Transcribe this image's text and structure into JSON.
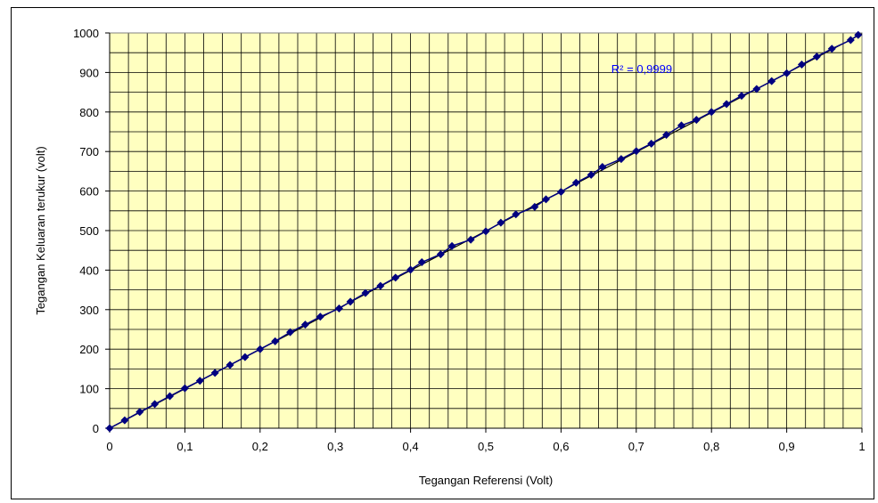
{
  "chart_data": {
    "type": "scatter",
    "title": "",
    "xlabel": "Tegangan Referensi (Volt)",
    "ylabel": "Tegangan Keluaran terukur (volt)",
    "xlim": [
      0,
      1
    ],
    "ylim": [
      0,
      1000
    ],
    "x_ticks": [
      "0",
      "0,1",
      "0,2",
      "0,3",
      "0,4",
      "0,5",
      "0,6",
      "0,7",
      "0,8",
      "0,9",
      "1"
    ],
    "y_ticks": [
      "0",
      "100",
      "200",
      "300",
      "400",
      "500",
      "600",
      "700",
      "800",
      "900",
      "1000"
    ],
    "grid": true,
    "plot_background": "#ffffc0",
    "series": [
      {
        "marker": "diamond",
        "color": "#000080",
        "line_color": "#000080",
        "points": [
          [
            0,
            0
          ],
          [
            0.02,
            20
          ],
          [
            0.04,
            41
          ],
          [
            0.06,
            61
          ],
          [
            0.08,
            81
          ],
          [
            0.1,
            101
          ],
          [
            0.12,
            120
          ],
          [
            0.14,
            140
          ],
          [
            0.16,
            160
          ],
          [
            0.18,
            180
          ],
          [
            0.2,
            200
          ],
          [
            0.22,
            220
          ],
          [
            0.24,
            243
          ],
          [
            0.26,
            262
          ],
          [
            0.28,
            282
          ],
          [
            0.305,
            303
          ],
          [
            0.32,
            320
          ],
          [
            0.34,
            342
          ],
          [
            0.36,
            360
          ],
          [
            0.38,
            381
          ],
          [
            0.4,
            401
          ],
          [
            0.415,
            420
          ],
          [
            0.44,
            440
          ],
          [
            0.455,
            461
          ],
          [
            0.48,
            477
          ],
          [
            0.5,
            498
          ],
          [
            0.52,
            520
          ],
          [
            0.54,
            541
          ],
          [
            0.565,
            560
          ],
          [
            0.58,
            579
          ],
          [
            0.6,
            598
          ],
          [
            0.62,
            621
          ],
          [
            0.64,
            641
          ],
          [
            0.655,
            661
          ],
          [
            0.68,
            681
          ],
          [
            0.7,
            701
          ],
          [
            0.72,
            720
          ],
          [
            0.74,
            742
          ],
          [
            0.76,
            766
          ],
          [
            0.78,
            780
          ],
          [
            0.8,
            800
          ],
          [
            0.82,
            820
          ],
          [
            0.84,
            841
          ],
          [
            0.86,
            858
          ],
          [
            0.88,
            878
          ],
          [
            0.9,
            898
          ],
          [
            0.92,
            920
          ],
          [
            0.94,
            940
          ],
          [
            0.96,
            960
          ],
          [
            0.985,
            982
          ],
          [
            0.995,
            995
          ]
        ]
      }
    ],
    "trendline": {
      "type": "linear",
      "from": [
        0,
        0
      ],
      "to": [
        1,
        998
      ],
      "color": "#000000"
    },
    "annotation": {
      "text": "R² = 0,9999",
      "color": "#0000ff",
      "x": 0.7,
      "y": 910
    }
  }
}
